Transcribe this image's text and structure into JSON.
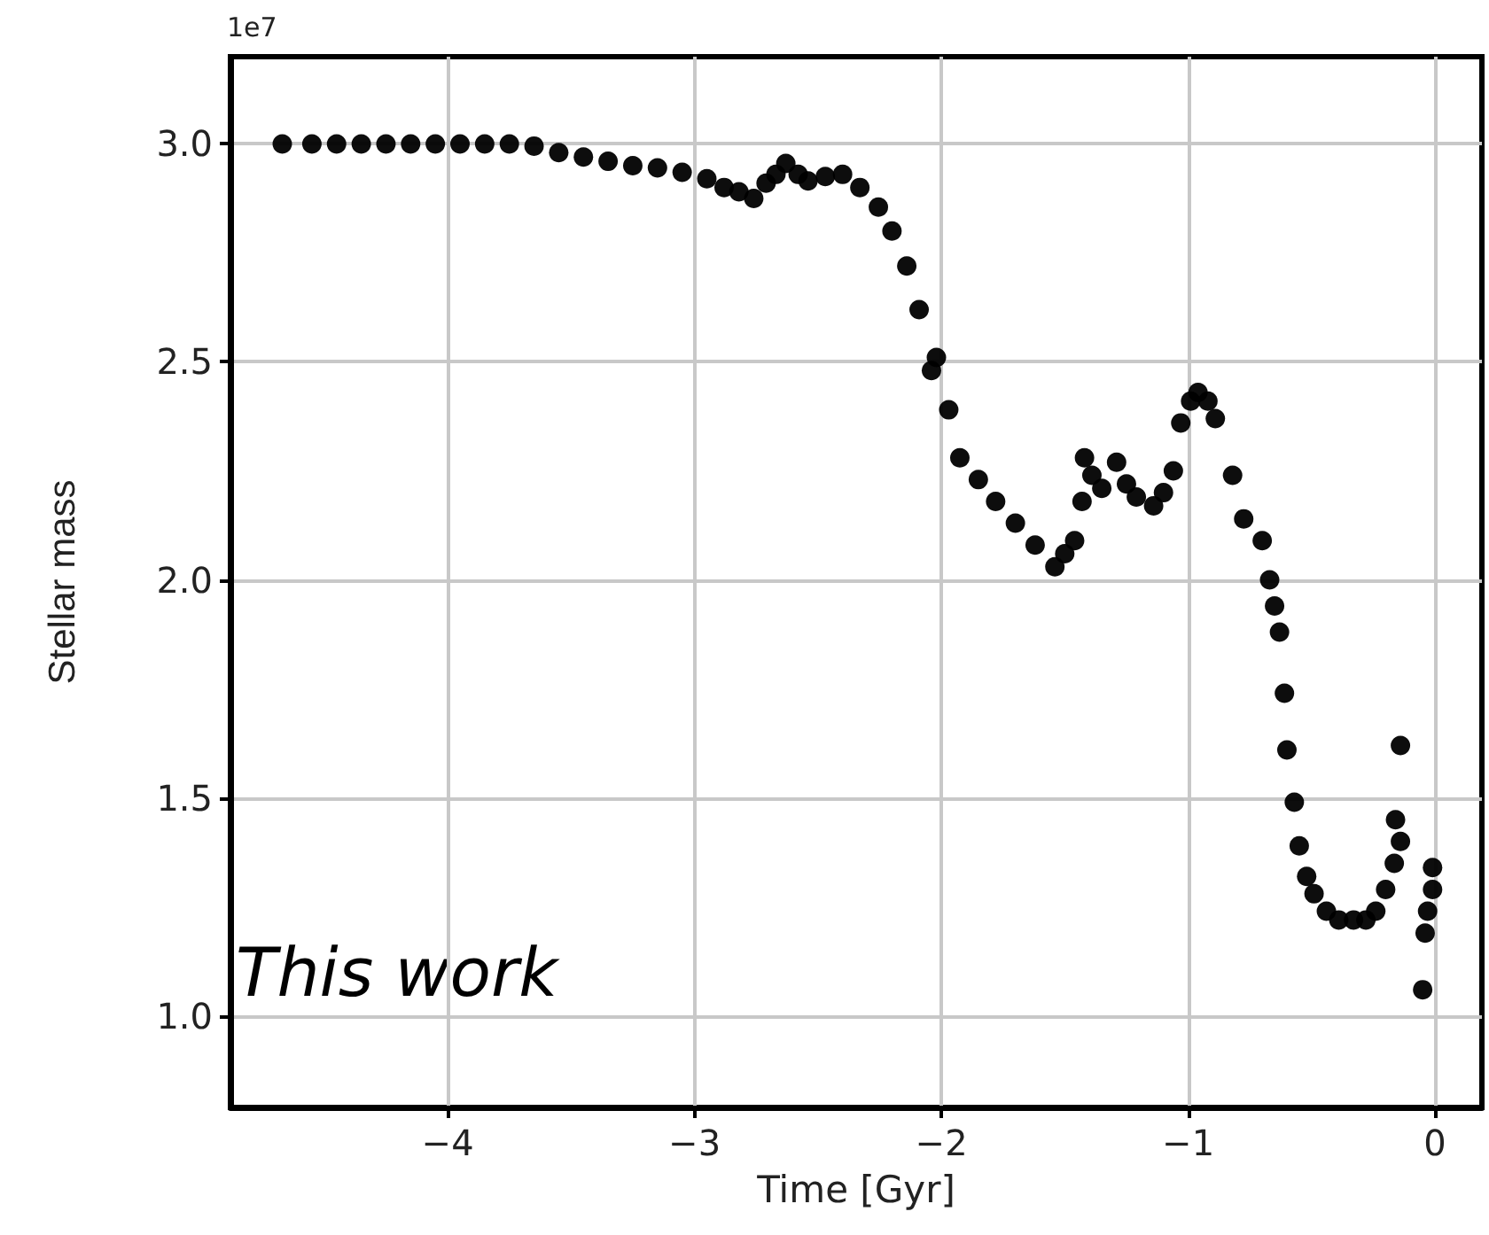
{
  "chart_data": {
    "type": "scatter",
    "xlabel": "Time [Gyr]",
    "ylabel": "Stellar mass",
    "annotations": [
      "1e7",
      "This work"
    ],
    "xlim": [
      -4.88,
      0.19
    ],
    "ylim": [
      0.79,
      3.2
    ],
    "xticks": [
      {
        "value": -4,
        "label": "−4"
      },
      {
        "value": -3,
        "label": "−3"
      },
      {
        "value": -2,
        "label": "−2"
      },
      {
        "value": -1,
        "label": "−1"
      },
      0
    ],
    "yticks": [
      {
        "value": 1,
        "label": "1.0"
      },
      1.5,
      {
        "value": 2,
        "label": "2.0"
      },
      2.5,
      {
        "value": 3,
        "label": "3.0"
      }
    ],
    "grid": true,
    "marker": "circle",
    "series": [
      {
        "color": "#000000",
        "x": [
          -4.67,
          -4.55,
          -4.45,
          -4.35,
          -4.25,
          -4.15,
          -4.05,
          -3.95,
          -3.85,
          -3.75,
          -3.65,
          -3.55,
          -3.45,
          -3.35,
          -3.25,
          -3.15,
          -3.05,
          -2.95,
          -2.88,
          -2.82,
          -2.76,
          -2.71,
          -2.67,
          -2.63,
          -2.58,
          -2.54,
          -2.47,
          -2.4,
          -2.33,
          -2.255,
          -2.2,
          -2.14,
          -2.09,
          -2.04,
          -2.02,
          -1.97,
          -1.925,
          -1.85,
          -1.78,
          -1.7,
          -1.62,
          -1.54,
          -1.5,
          -1.46,
          -1.43,
          -1.42,
          -1.39,
          -1.35,
          -1.29,
          -1.25,
          -1.21,
          -1.14,
          -1.1,
          -1.06,
          -1.03,
          -0.99,
          -0.96,
          -0.92,
          -0.89,
          -0.82,
          -0.775,
          -0.7,
          -0.67,
          -0.65,
          -0.63,
          -0.61,
          -0.6,
          -0.57,
          -0.55,
          -0.52,
          -0.49,
          -0.44,
          -0.39,
          -0.33,
          -0.28,
          -0.24,
          -0.2,
          -0.165,
          -0.14,
          -0.16,
          -0.14,
          -0.01,
          -0.01,
          -0.03,
          -0.04,
          -0.05
        ],
        "values": [
          3.0,
          3.0,
          3.0,
          3.0,
          3.0,
          3.0,
          3.0,
          3.0,
          3.0,
          3.0,
          2.995,
          2.98,
          2.97,
          2.96,
          2.95,
          2.945,
          2.935,
          2.92,
          2.9,
          2.89,
          2.875,
          2.91,
          2.93,
          2.955,
          2.93,
          2.915,
          2.925,
          2.93,
          2.9,
          2.855,
          2.8,
          2.72,
          2.62,
          2.48,
          2.51,
          2.39,
          2.28,
          2.23,
          2.18,
          2.13,
          2.08,
          2.03,
          2.06,
          2.09,
          2.18,
          2.28,
          2.24,
          2.21,
          2.27,
          2.22,
          2.19,
          2.17,
          2.2,
          2.25,
          2.36,
          2.41,
          2.43,
          2.41,
          2.37,
          2.24,
          2.14,
          2.09,
          2.0,
          1.94,
          1.88,
          1.74,
          1.61,
          1.49,
          1.39,
          1.32,
          1.28,
          1.24,
          1.22,
          1.22,
          1.22,
          1.24,
          1.29,
          1.35,
          1.4,
          1.45,
          1.62,
          1.34,
          1.29,
          1.24,
          1.19,
          1.06
        ]
      }
    ]
  }
}
